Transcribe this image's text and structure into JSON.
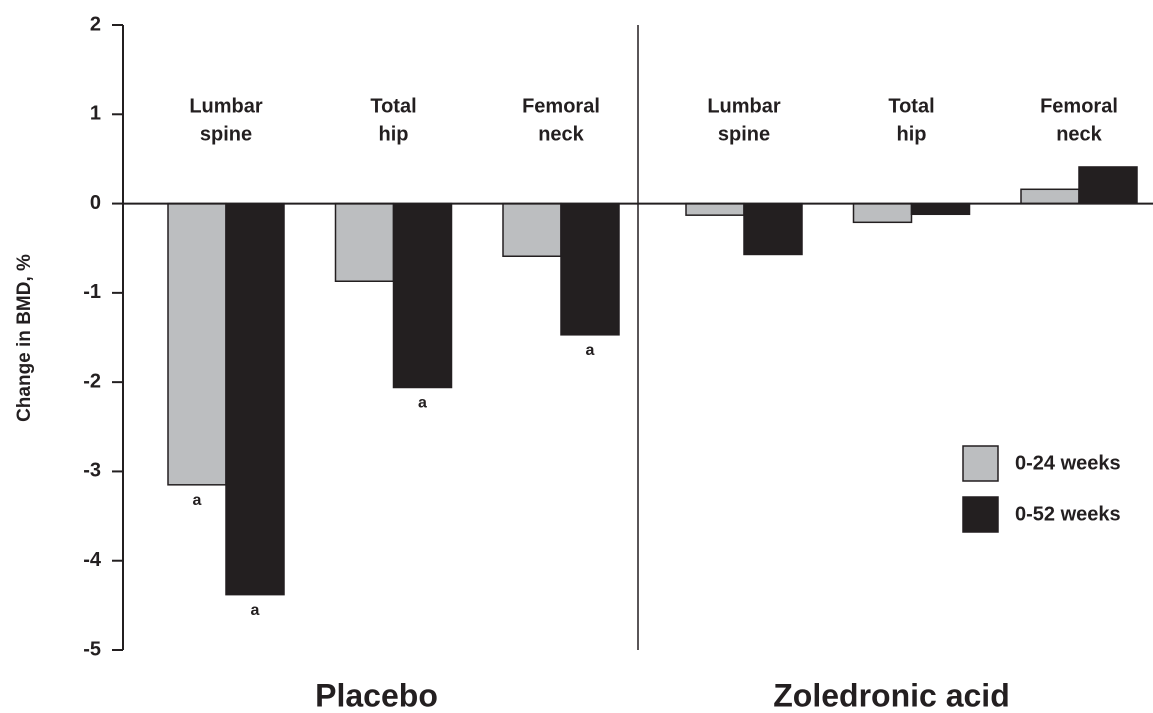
{
  "chart_data": {
    "type": "bar",
    "y_label": "Change in BMD, %",
    "ylim": [
      -5,
      2
    ],
    "yticks": [
      -5,
      -4,
      -3,
      -2,
      -1,
      0,
      1,
      2
    ],
    "legend_position": "right",
    "panels": [
      {
        "title": "Placebo"
      },
      {
        "title": "Zoledronic acid"
      }
    ],
    "categories": [
      [
        "Lumbar",
        "spine"
      ],
      [
        "Total",
        "hip"
      ],
      [
        "Femoral",
        "neck"
      ],
      [
        "Lumbar",
        "spine"
      ],
      [
        "Total",
        "hip"
      ],
      [
        "Femoral",
        "neck"
      ]
    ],
    "series": [
      {
        "name": "0-24 weeks",
        "color": "#bcbec0",
        "values": [
          -3.15,
          -0.87,
          -0.59,
          -0.13,
          -0.21,
          0.16
        ],
        "annotations": [
          "a",
          null,
          null,
          null,
          null,
          null
        ]
      },
      {
        "name": "0-52 weeks",
        "color": "#231f20",
        "values": [
          -4.38,
          -2.06,
          -1.47,
          -0.57,
          -0.12,
          0.41
        ],
        "annotations": [
          "a",
          "a",
          "a",
          null,
          null,
          null
        ]
      }
    ]
  }
}
